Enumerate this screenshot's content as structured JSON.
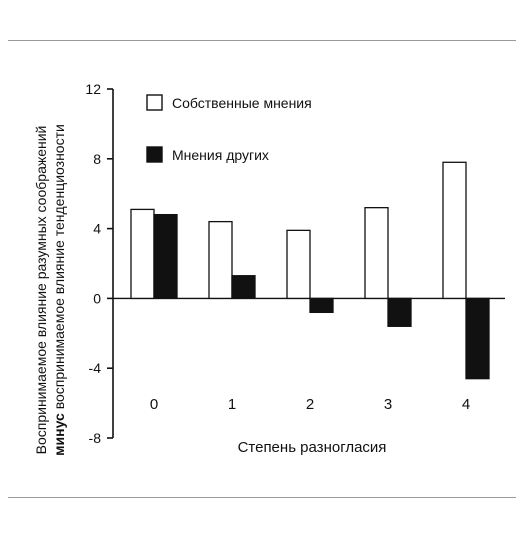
{
  "chart_data": {
    "type": "bar",
    "categories": [
      "0",
      "1",
      "2",
      "3",
      "4"
    ],
    "series": [
      {
        "name": "Собственные мнения",
        "values": [
          5.1,
          4.4,
          3.9,
          5.2,
          7.8
        ],
        "color": "#ffffff",
        "stroke": "#111111"
      },
      {
        "name": "Мнения других",
        "values": [
          4.8,
          1.3,
          -0.8,
          -1.6,
          -4.6
        ],
        "color": "#111111",
        "stroke": "#111111"
      }
    ],
    "xlabel": "Степень разногласия",
    "ylabel_line1": "Воспринимаемое влияние разумных соображений",
    "ylabel_line2_bold": "минус",
    "ylabel_line2_rest": " воспринимаемое влияние тенденциозности",
    "ylim": [
      -8,
      12
    ],
    "yticks": [
      12,
      8,
      4,
      0,
      -4,
      -8
    ],
    "ytick_labels": [
      "12",
      "8",
      "4",
      "0",
      "-4",
      "-8"
    ],
    "legend_position": "top-left inside plot",
    "grid": false
  }
}
